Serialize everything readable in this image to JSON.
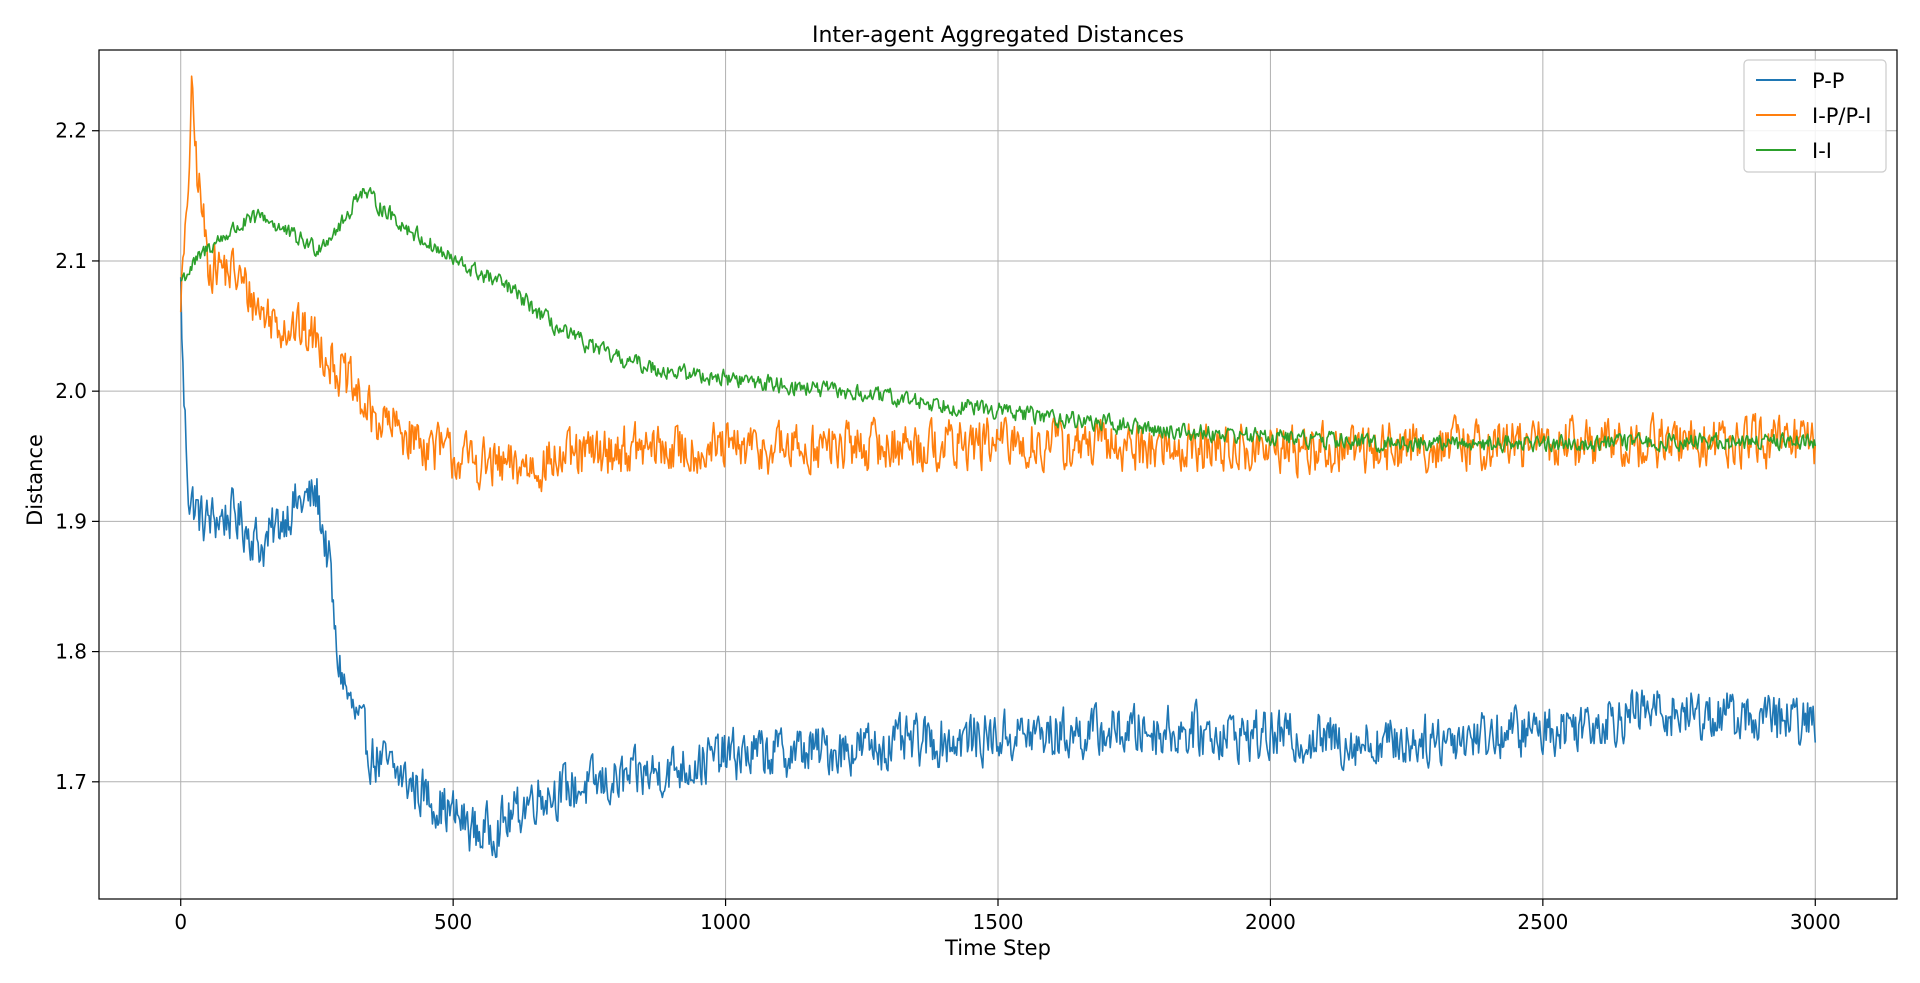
{
  "chart_data": {
    "type": "line",
    "title": "Inter-agent Aggregated Distances",
    "xlabel": "Time Step",
    "ylabel": "Distance",
    "xlim": [
      -150,
      3150
    ],
    "ylim": [
      1.61,
      2.262
    ],
    "x_ticks": [
      0,
      500,
      1000,
      1500,
      2000,
      2500,
      3000
    ],
    "x_tick_labels": [
      "0",
      "500",
      "1000",
      "1500",
      "2000",
      "2500",
      "3000"
    ],
    "y_ticks": [
      1.7,
      1.8,
      1.9,
      2.0,
      2.1,
      2.2
    ],
    "y_tick_labels": [
      "1.7",
      "1.8",
      "1.9",
      "2.0",
      "2.1",
      "2.2"
    ],
    "grid": true,
    "legend_position": "top-right",
    "x_range_of_data": [
      0,
      3000
    ],
    "series": [
      {
        "name": "P-P",
        "color": "#1f77b4",
        "noise": 0.018,
        "key_points": [
          [
            0,
            2.08
          ],
          [
            5,
            2.0
          ],
          [
            15,
            1.92
          ],
          [
            40,
            1.9
          ],
          [
            100,
            1.905
          ],
          [
            150,
            1.88
          ],
          [
            200,
            1.91
          ],
          [
            250,
            1.92
          ],
          [
            275,
            1.86
          ],
          [
            285,
            1.8
          ],
          [
            310,
            1.76
          ],
          [
            350,
            1.72
          ],
          [
            450,
            1.69
          ],
          [
            550,
            1.66
          ],
          [
            600,
            1.67
          ],
          [
            650,
            1.69
          ],
          [
            800,
            1.7
          ],
          [
            1000,
            1.72
          ],
          [
            1200,
            1.725
          ],
          [
            1500,
            1.735
          ],
          [
            1800,
            1.74
          ],
          [
            2000,
            1.735
          ],
          [
            2200,
            1.73
          ],
          [
            2500,
            1.74
          ],
          [
            2700,
            1.755
          ],
          [
            3000,
            1.745
          ]
        ]
      },
      {
        "name": "I-P/P-I",
        "color": "#ff7f0e",
        "noise": 0.018,
        "key_points": [
          [
            0,
            2.075
          ],
          [
            10,
            2.12
          ],
          [
            20,
            2.225
          ],
          [
            30,
            2.17
          ],
          [
            50,
            2.1
          ],
          [
            100,
            2.09
          ],
          [
            150,
            2.06
          ],
          [
            200,
            2.05
          ],
          [
            250,
            2.04
          ],
          [
            300,
            2.01
          ],
          [
            350,
            1.98
          ],
          [
            400,
            1.97
          ],
          [
            500,
            1.95
          ],
          [
            600,
            1.94
          ],
          [
            800,
            1.955
          ],
          [
            1000,
            1.955
          ],
          [
            1500,
            1.96
          ],
          [
            2000,
            1.955
          ],
          [
            2500,
            1.96
          ],
          [
            3000,
            1.96
          ]
        ]
      },
      {
        "name": "I-I",
        "color": "#2ca02c",
        "noise": 0.006,
        "key_points": [
          [
            0,
            2.085
          ],
          [
            50,
            2.11
          ],
          [
            100,
            2.125
          ],
          [
            150,
            2.135
          ],
          [
            200,
            2.12
          ],
          [
            250,
            2.11
          ],
          [
            300,
            2.13
          ],
          [
            330,
            2.155
          ],
          [
            400,
            2.13
          ],
          [
            500,
            2.1
          ],
          [
            600,
            2.08
          ],
          [
            700,
            2.045
          ],
          [
            800,
            2.025
          ],
          [
            900,
            2.015
          ],
          [
            1000,
            2.01
          ],
          [
            1200,
            2.0
          ],
          [
            1500,
            1.985
          ],
          [
            1800,
            1.97
          ],
          [
            2000,
            1.965
          ],
          [
            2200,
            1.96
          ],
          [
            2500,
            1.96
          ],
          [
            3000,
            1.962
          ]
        ]
      }
    ]
  }
}
